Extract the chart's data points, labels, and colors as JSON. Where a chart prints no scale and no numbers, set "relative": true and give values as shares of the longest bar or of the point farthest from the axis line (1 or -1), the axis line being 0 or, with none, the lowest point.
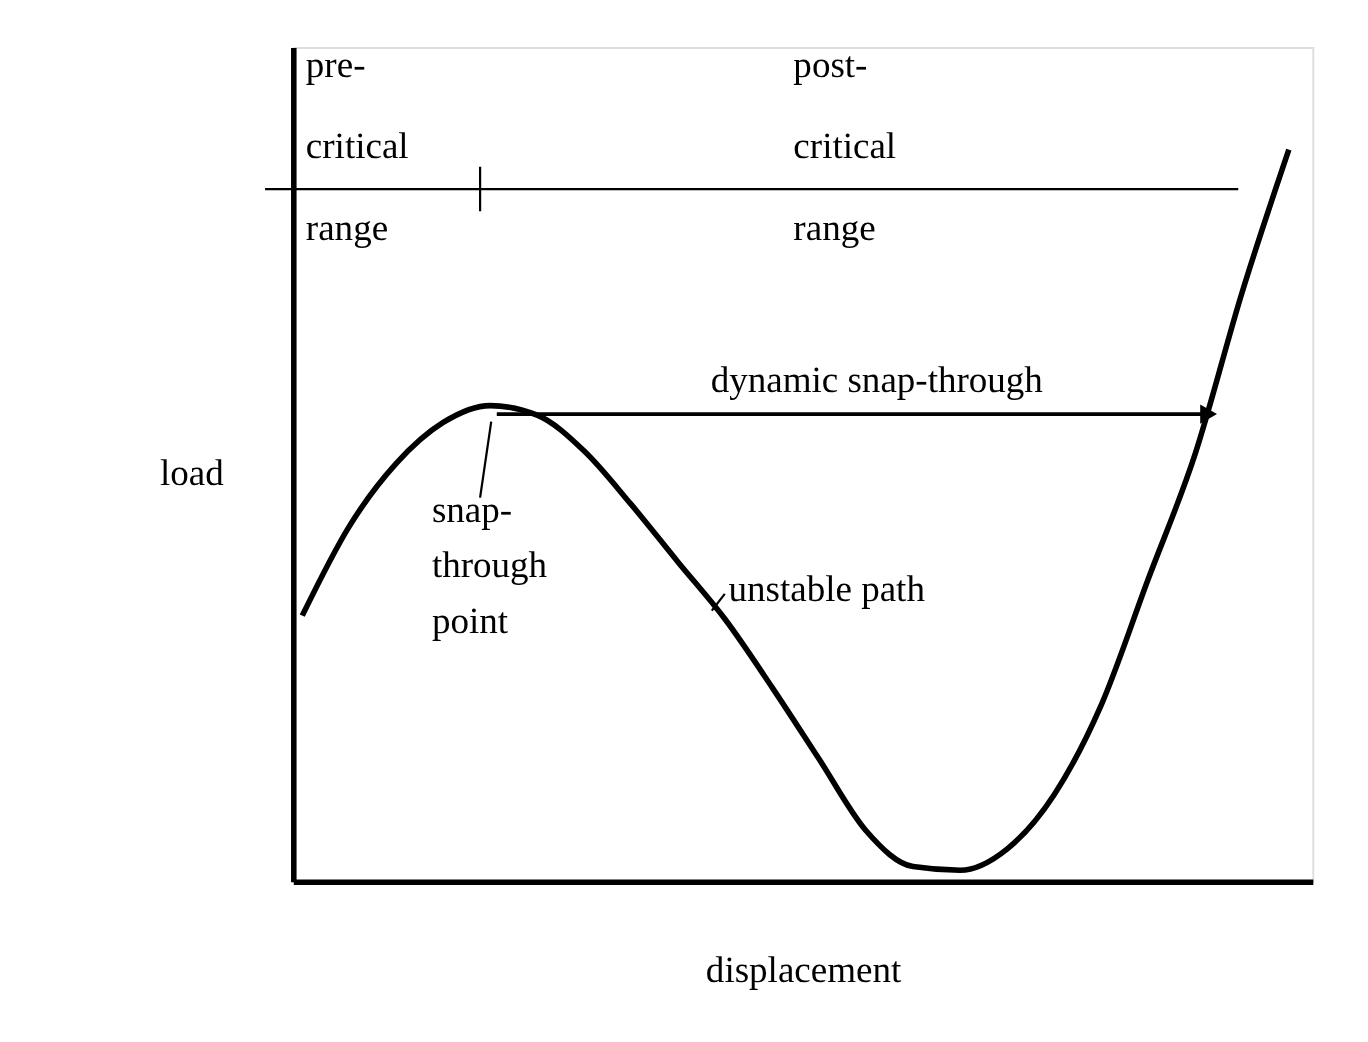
{
  "chart_data": {
    "type": "line",
    "relative": true,
    "xlabel": "displacement",
    "ylabel": "load",
    "categories": [
      null,
      null,
      null,
      null,
      null,
      null,
      null,
      null,
      null,
      null,
      null,
      null,
      null,
      null,
      null,
      null,
      null,
      null,
      null,
      null,
      null,
      null
    ],
    "series": [
      {
        "color": "#000000",
        "values": [
          0.363,
          0.485,
          0.571,
          0.627,
          0.65,
          0.637,
          0.588,
          0.515,
          0.436,
          0.358,
          0.265,
          0.167,
          0.069,
          0.02,
          0.015,
          0.044,
          0.118,
          0.24,
          0.412,
          0.583,
          0.804,
          1.0
        ]
      }
    ],
    "ref_lines": [
      {
        "axis": "y",
        "value": 0.946,
        "color": "#000000"
      }
    ],
    "annotations": [
      "pre-\ncritical\nrange",
      "post-\ncritical\nrange",
      "dynamic snap-through",
      "snap-\nthrough\npoint",
      "unstable path"
    ],
    "grid": false,
    "marker": "none",
    "line_style": "solid",
    "tick_labels": false
  }
}
